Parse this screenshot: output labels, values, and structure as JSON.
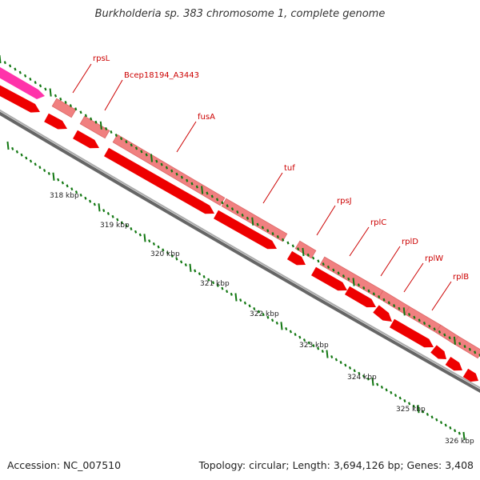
{
  "title": "Burkholderia sp. 383 chromosome 1, complete genome",
  "footer": {
    "accession": "Accession: NC_007510",
    "summary": "Topology: circular; Length: 3,694,126 bp; Genes: 3,408"
  },
  "kbp_labels": [
    "318 kbp",
    "319 kbp",
    "320 kbp",
    "321 kbp",
    "322 kbp",
    "323 kbp",
    "324 kbp",
    "325 kbp",
    "326 kbp"
  ],
  "genes": [
    {
      "name": "rpsL"
    },
    {
      "name": "Bcep18194_A3443"
    },
    {
      "name": "fusA"
    },
    {
      "name": "tuf"
    },
    {
      "name": "rpsJ"
    },
    {
      "name": "rplC"
    },
    {
      "name": "rplD"
    },
    {
      "name": "rplW"
    },
    {
      "name": "rplB"
    }
  ],
  "colors": {
    "title": "#333333",
    "gene_label": "#cc0000",
    "label_line": "#cc0000",
    "cds": "#ee0000",
    "gene_light": "#f08080",
    "rrna": "#ff33aa",
    "tick": "#117711",
    "backbone": "#888888"
  }
}
